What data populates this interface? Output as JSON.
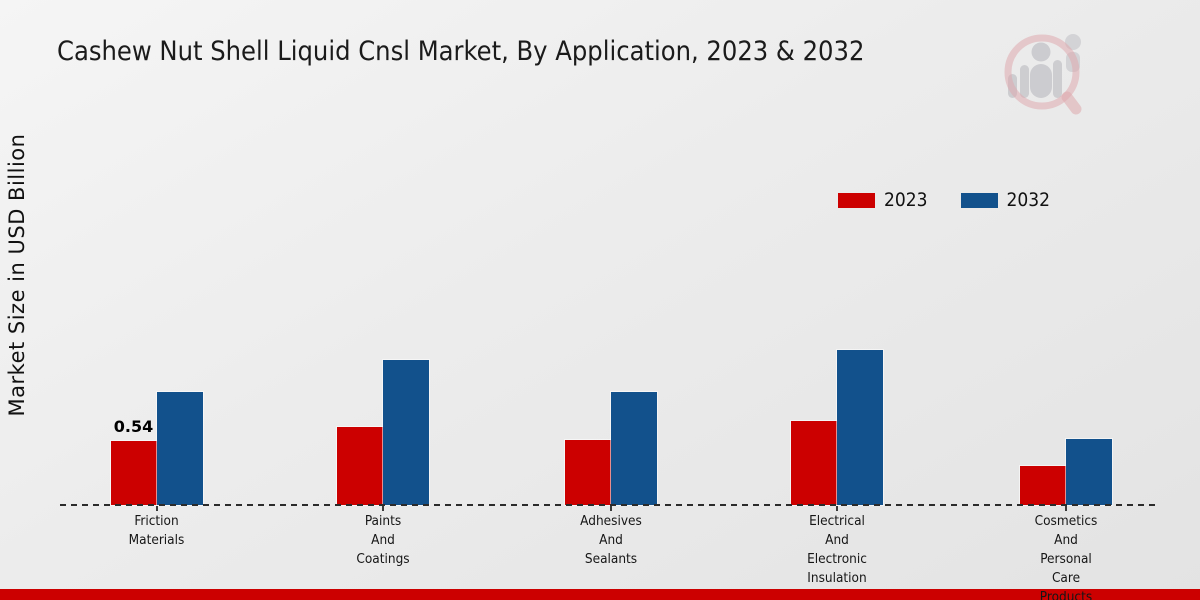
{
  "header": {
    "title": "Cashew Nut Shell Liquid Cnsl Market, By Application, 2023 & 2032"
  },
  "axes": {
    "y_label": "Market Size in USD Billion"
  },
  "colors": {
    "accent_red": "#cc0000",
    "accent_blue": "#12518c",
    "footer": "#cc0000"
  },
  "watermark": {
    "icon": "magnifier-bar-chart-logo"
  },
  "chart_data": {
    "type": "bar",
    "title": "Cashew Nut Shell Liquid Cnsl Market, By Application, 2023 & 2032",
    "xlabel": "",
    "ylabel": "Market Size in USD Billion",
    "categories": [
      "Friction Materials",
      "Paints And Coatings",
      "Adhesives And Sealants",
      "Electrical And Electronic Insulation",
      "Cosmetics And Personal Care Products"
    ],
    "series": [
      {
        "name": "2023",
        "color": "#cc0000",
        "values": [
          0.54,
          0.66,
          0.55,
          0.71,
          0.33
        ]
      },
      {
        "name": "2032",
        "color": "#12518c",
        "values": [
          0.96,
          1.23,
          0.96,
          1.31,
          0.56
        ]
      }
    ],
    "annotations": [
      {
        "series": 0,
        "category": 0,
        "label": "0.54"
      }
    ],
    "ylim": [
      0,
      3.2
    ],
    "grid": false,
    "y_ticks_visible": false,
    "legend_position": "upper-right",
    "baseline_style": "dashed"
  }
}
